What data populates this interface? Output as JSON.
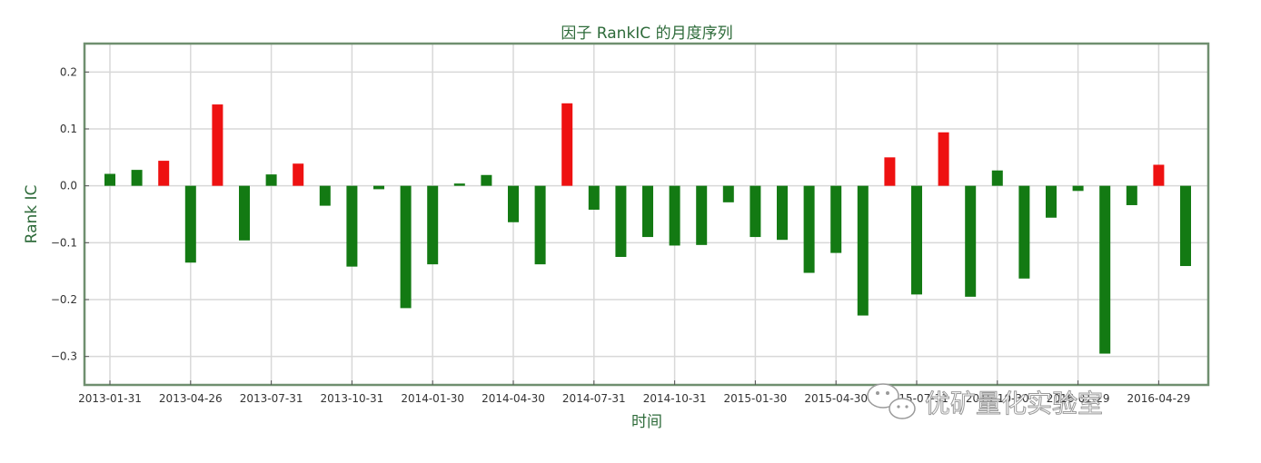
{
  "chart_data": {
    "type": "bar",
    "title": "因子 RankIC 的月度序列",
    "xlabel": "时间",
    "ylabel": "Rank IC",
    "ylim": [
      -0.35,
      0.25
    ],
    "yticks": [
      0.2,
      0.1,
      0.0,
      -0.1,
      -0.2,
      -0.3
    ],
    "ytick_labels": [
      "0.2",
      "0.1",
      "0.0",
      "−0.1",
      "−0.2",
      "−0.3"
    ],
    "xtick_labels": [
      "2013-01-31",
      "2013-04-26",
      "2013-07-31",
      "2013-10-31",
      "2014-01-30",
      "2014-04-30",
      "2014-07-31",
      "2014-10-31",
      "2015-01-30",
      "2015-04-30",
      "2015-07-31",
      "2015-10-30",
      "2016-01-29",
      "2016-04-29"
    ],
    "xtick_every": 3,
    "grid": true,
    "colors": {
      "highlight": "#ee1111",
      "normal": "#137a13",
      "frame": "#6f8f6f",
      "grid": "#d8d8d8",
      "text_green": "#2e6b3a"
    },
    "values": [
      0.021,
      0.028,
      0.044,
      -0.135,
      0.143,
      -0.096,
      0.02,
      0.039,
      -0.035,
      -0.142,
      -0.006,
      -0.215,
      -0.138,
      0.004,
      0.019,
      -0.064,
      -0.138,
      0.145,
      -0.042,
      -0.125,
      -0.09,
      -0.105,
      -0.104,
      -0.029,
      -0.09,
      -0.095,
      -0.153,
      -0.118,
      -0.228,
      0.05,
      -0.191,
      0.094,
      -0.195,
      0.027,
      -0.163,
      -0.056,
      -0.009,
      -0.295,
      -0.034,
      0.037,
      -0.141
    ],
    "highlight": [
      false,
      false,
      true,
      false,
      true,
      false,
      false,
      true,
      false,
      false,
      false,
      false,
      false,
      false,
      false,
      false,
      false,
      true,
      false,
      false,
      false,
      false,
      false,
      false,
      false,
      false,
      false,
      false,
      false,
      true,
      false,
      true,
      false,
      false,
      false,
      false,
      false,
      false,
      false,
      true,
      false
    ]
  },
  "watermark": {
    "text": "优矿量化实验室",
    "icon": "wechat-icon"
  }
}
